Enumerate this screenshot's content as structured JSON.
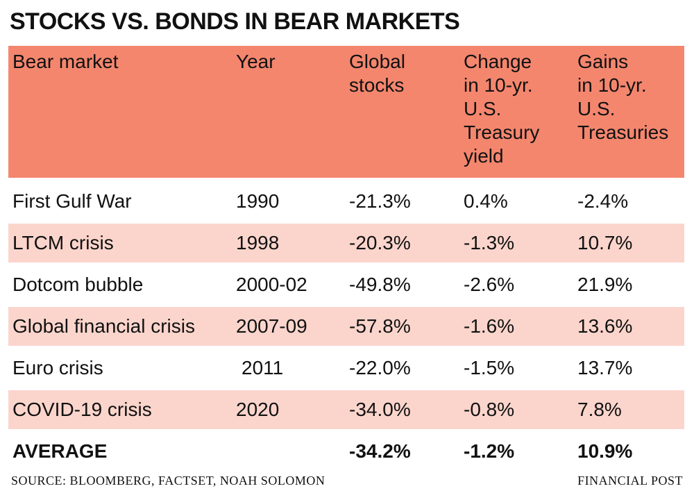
{
  "header": {
    "title": "STOCKS VS. BONDS IN BEAR MARKETS"
  },
  "table": {
    "columns": [
      [
        "Bear market"
      ],
      [
        "Year"
      ],
      [
        "Global",
        "stocks"
      ],
      [
        "Change",
        "in 10-yr.",
        "U.S.",
        "Treasury",
        "yield"
      ],
      [
        "Gains",
        "in 10-yr.",
        "U.S.",
        "Treasuries"
      ]
    ],
    "rows": [
      [
        "First Gulf War",
        "1990",
        "-21.3%",
        "0.4%",
        "-2.4%"
      ],
      [
        "LTCM crisis",
        "1998",
        "-20.3%",
        "-1.3%",
        "10.7%"
      ],
      [
        "Dotcom bubble",
        "2000-02",
        "-49.8%",
        "-2.6%",
        "21.9%"
      ],
      [
        "Global financial crisis",
        "2007-09",
        "-57.8%",
        "-1.6%",
        "13.6%"
      ],
      [
        "Euro crisis",
        "2011",
        "-22.0%",
        "-1.5%",
        "13.7%"
      ],
      [
        "COVID-19 crisis",
        "2020",
        "-34.0%",
        "-0.8%",
        "7.8%"
      ]
    ],
    "average": {
      "label": "AVERAGE",
      "values": [
        "-34.2%",
        "-1.2%",
        "10.9%"
      ]
    }
  },
  "footer": {
    "source": "SOURCE: BLOOMBERG, FACTSET, NOAH SOLOMON",
    "credit": "FINANCIAL POST"
  }
}
